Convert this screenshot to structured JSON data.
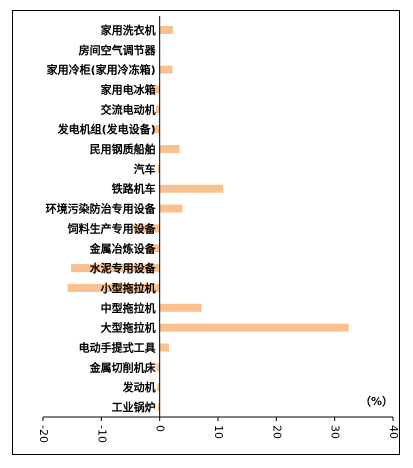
{
  "chart_data": {
    "type": "bar",
    "orientation": "horizontal",
    "categories": [
      "家用洗衣机",
      "房间空气调节器",
      "家用冷柜(家用冷冻箱)",
      "家用电冰箱",
      "交流电动机",
      "发电机组(发电设备)",
      "民用钢质船舶",
      "汽车",
      "铁路机车",
      "环境污染防治专用设备",
      "饲料生产专用设备",
      "金属冶炼设备",
      "水泥专用设备",
      "小型拖拉机",
      "中型拖拉机",
      "大型拖拉机",
      "电动手提式工具",
      "金属切削机床",
      "发动机",
      "工业锅炉"
    ],
    "values": [
      2.3,
      0.1,
      2.2,
      -0.8,
      -0.6,
      -1.2,
      3.4,
      -0.3,
      10.9,
      3.9,
      -4.5,
      -2.2,
      -15.2,
      -15.8,
      7.2,
      32.4,
      1.6,
      -0.5,
      -0.4,
      -0.3
    ],
    "xlim": [
      -20,
      40
    ],
    "xticks": [
      -20,
      -10,
      0,
      10,
      20,
      30,
      40
    ],
    "unit_label": "（%）",
    "bar_color": "#FAC090",
    "grid": false,
    "legend": "none"
  }
}
